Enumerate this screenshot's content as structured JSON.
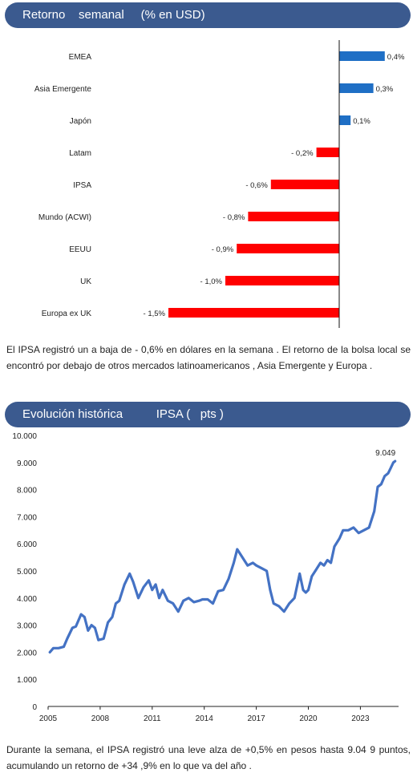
{
  "headers": {
    "weekly": "Retorno    semanal     (% en USD)",
    "historic": "Evolución histórica          IPSA (   pts )"
  },
  "paragraphs": {
    "p1": "El IPSA registró un a baja de - 0,6% en dólares en la semana . El retorno de la bolsa local se encontró por debajo de otros mercados latinoamericanos , Asia Emergente y Europa .",
    "p2": "Durante la semana, el IPSA registró una leve alza de +0,5% en pesos hasta 9.04 9 puntos, acumulando un retorno de +34 ,9% en lo que va del año ."
  },
  "colors": {
    "header": "#3b5a8f",
    "positive": "#1f6fc5",
    "negative": "#ff0000",
    "line": "#4472c4"
  },
  "chart_data": [
    {
      "type": "bar",
      "orientation": "horizontal",
      "title": "Retorno semanal (% en USD)",
      "categories": [
        "EMEA",
        "Asia Emergente",
        "Japón",
        "Latam",
        "IPSA",
        "Mundo (ACWI)",
        "EEUU",
        "UK",
        "Europa ex UK"
      ],
      "values": [
        0.4,
        0.3,
        0.1,
        -0.2,
        -0.6,
        -0.8,
        -0.9,
        -1.0,
        -1.5
      ],
      "labels": [
        "0,4%",
        "0,3%",
        "0,1%",
        "- 0,2%",
        "- 0,6%",
        "- 0,8%",
        "- 0,9%",
        "- 1,0%",
        "- 1,5%"
      ]
    },
    {
      "type": "line",
      "title": "Evolución histórica IPSA (pts)",
      "x_ticks": [
        "2005",
        "2008",
        "2011",
        "2014",
        "2017",
        "2020",
        "2023"
      ],
      "y_ticks": [
        "0",
        "1.000",
        "2.000",
        "3.000",
        "4.000",
        "5.000",
        "6.000",
        "7.000",
        "8.000",
        "9.000",
        "10.000"
      ],
      "ylim": [
        0,
        10000
      ],
      "xlim": [
        2005,
        2025.2
      ],
      "last_label": "9.049",
      "series": [
        {
          "x": [
            2005.1,
            2005.3,
            2005.6,
            2005.9,
            2006.1,
            2006.4,
            2006.6,
            2006.9,
            2007.1,
            2007.3,
            2007.5,
            2007.7,
            2007.9,
            2008.2,
            2008.45,
            2008.7,
            2008.9,
            2009.1,
            2009.4,
            2009.7,
            2009.9,
            2010.2,
            2010.5,
            2010.8,
            2011.0,
            2011.2,
            2011.4,
            2011.6,
            2011.9,
            2012.2,
            2012.5,
            2012.8,
            2013.1,
            2013.4,
            2013.7,
            2013.9,
            2014.2,
            2014.5,
            2014.8,
            2015.1,
            2015.4,
            2015.7,
            2015.9,
            2016.2,
            2016.5,
            2016.8,
            2017.0,
            2017.3,
            2017.6,
            2017.8,
            2018.0,
            2018.3,
            2018.6,
            2018.9,
            2019.2,
            2019.5,
            2019.7,
            2019.85,
            2020.0,
            2020.2,
            2020.4,
            2020.7,
            2020.9,
            2021.1,
            2021.3,
            2021.5,
            2021.8,
            2022.0,
            2022.3,
            2022.6,
            2022.9,
            2023.2,
            2023.5,
            2023.8,
            2024.0,
            2024.2,
            2024.4,
            2024.6,
            2024.75,
            2024.9,
            2025.0
          ],
          "y": [
            2000,
            2150,
            2150,
            2200,
            2500,
            2900,
            2950,
            3400,
            3300,
            2800,
            3000,
            2900,
            2450,
            2500,
            3100,
            3300,
            3800,
            3900,
            4500,
            4900,
            4600,
            4000,
            4400,
            4650,
            4300,
            4500,
            4000,
            4300,
            3900,
            3800,
            3500,
            3900,
            4000,
            3850,
            3900,
            3950,
            3950,
            3800,
            4250,
            4300,
            4700,
            5300,
            5800,
            5500,
            5200,
            5300,
            5200,
            5100,
            5000,
            4300,
            3800,
            3700,
            3500,
            3800,
            4000,
            4900,
            4300,
            4200,
            4300,
            4800,
            5000,
            5300,
            5200,
            5400,
            5300,
            5900,
            6200,
            6500,
            6500,
            6600,
            6400,
            6500,
            6600,
            7200,
            8100,
            8200,
            8500,
            8600,
            8800,
            9000,
            9049
          ]
        }
      ]
    }
  ]
}
